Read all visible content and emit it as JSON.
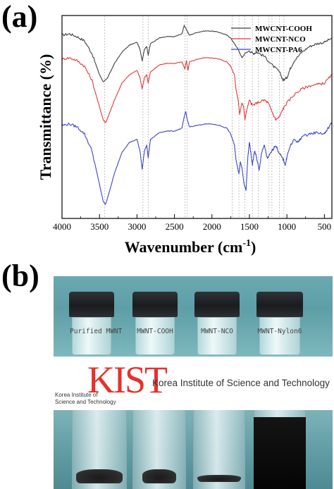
{
  "panel_a_label": "(a)",
  "panel_b_label": "(b)",
  "chart_data": {
    "type": "line",
    "xlabel": "Wavenumber (cm",
    "xlabel_sup": "-1",
    "xlabel_close": ")",
    "ylabel": "Transmittance (%)",
    "x_reversed": true,
    "xlim": [
      4000,
      400
    ],
    "x_ticks": [
      4000,
      3500,
      3000,
      2500,
      2000,
      1500,
      1000,
      500
    ],
    "y_ticks_shown": false,
    "grid": false,
    "reference_lines": [
      3430,
      2920,
      2850,
      2360,
      2330,
      1730,
      1640,
      1560,
      1460,
      1380,
      1240,
      1200,
      1100,
      1040
    ],
    "legend_position": "top-right",
    "series": [
      {
        "name": "MWCNT-COOH",
        "color": "#404040",
        "points": [
          [
            4000,
            68
          ],
          [
            3900,
            69
          ],
          [
            3800,
            67
          ],
          [
            3700,
            64
          ],
          [
            3600,
            55
          ],
          [
            3500,
            40
          ],
          [
            3450,
            35
          ],
          [
            3400,
            37
          ],
          [
            3300,
            48
          ],
          [
            3200,
            56
          ],
          [
            3100,
            61
          ],
          [
            3000,
            63
          ],
          [
            2960,
            58
          ],
          [
            2930,
            50
          ],
          [
            2900,
            58
          ],
          [
            2870,
            60
          ],
          [
            2850,
            54
          ],
          [
            2820,
            62
          ],
          [
            2700,
            66
          ],
          [
            2600,
            67
          ],
          [
            2500,
            67
          ],
          [
            2400,
            69
          ],
          [
            2370,
            75
          ],
          [
            2340,
            72
          ],
          [
            2300,
            68
          ],
          [
            2200,
            70
          ],
          [
            2100,
            71
          ],
          [
            2000,
            71
          ],
          [
            1900,
            70
          ],
          [
            1800,
            68
          ],
          [
            1750,
            66
          ],
          [
            1700,
            62
          ],
          [
            1650,
            58
          ],
          [
            1600,
            52
          ],
          [
            1560,
            55
          ],
          [
            1500,
            57
          ],
          [
            1450,
            55
          ],
          [
            1400,
            56
          ],
          [
            1300,
            53
          ],
          [
            1200,
            47
          ],
          [
            1100,
            42
          ],
          [
            1050,
            36
          ],
          [
            1000,
            38
          ],
          [
            950,
            45
          ],
          [
            900,
            50
          ],
          [
            800,
            56
          ],
          [
            700,
            60
          ],
          [
            600,
            62
          ],
          [
            500,
            63
          ],
          [
            400,
            66
          ]
        ]
      },
      {
        "name": "MWCNT-NCO",
        "color": "#e03a3a",
        "points": [
          [
            4000,
            51
          ],
          [
            3900,
            52
          ],
          [
            3800,
            50
          ],
          [
            3700,
            46
          ],
          [
            3600,
            36
          ],
          [
            3500,
            17
          ],
          [
            3450,
            8
          ],
          [
            3420,
            6
          ],
          [
            3400,
            8
          ],
          [
            3300,
            22
          ],
          [
            3200,
            34
          ],
          [
            3100,
            40
          ],
          [
            3000,
            43
          ],
          [
            2960,
            38
          ],
          [
            2930,
            30
          ],
          [
            2900,
            38
          ],
          [
            2870,
            40
          ],
          [
            2850,
            34
          ],
          [
            2820,
            42
          ],
          [
            2700,
            47
          ],
          [
            2600,
            48
          ],
          [
            2500,
            48
          ],
          [
            2400,
            49
          ],
          [
            2360,
            44
          ],
          [
            2340,
            50
          ],
          [
            2320,
            43
          ],
          [
            2300,
            49
          ],
          [
            2200,
            51
          ],
          [
            2100,
            52
          ],
          [
            2000,
            52
          ],
          [
            1900,
            51
          ],
          [
            1800,
            49
          ],
          [
            1750,
            46
          ],
          [
            1700,
            40
          ],
          [
            1680,
            30
          ],
          [
            1650,
            22
          ],
          [
            1630,
            12
          ],
          [
            1600,
            20
          ],
          [
            1580,
            18
          ],
          [
            1560,
            8
          ],
          [
            1540,
            14
          ],
          [
            1500,
            22
          ],
          [
            1460,
            18
          ],
          [
            1400,
            20
          ],
          [
            1300,
            22
          ],
          [
            1250,
            20
          ],
          [
            1200,
            14
          ],
          [
            1150,
            8
          ],
          [
            1100,
            10
          ],
          [
            1050,
            16
          ],
          [
            1000,
            20
          ],
          [
            900,
            26
          ],
          [
            800,
            30
          ],
          [
            700,
            32
          ],
          [
            600,
            33
          ],
          [
            500,
            34
          ],
          [
            400,
            40
          ]
        ]
      },
      {
        "name": "MWCNT-PA6",
        "color": "#3c46c8",
        "points": [
          [
            4000,
            4
          ],
          [
            3900,
            5
          ],
          [
            3800,
            3
          ],
          [
            3700,
            -2
          ],
          [
            3600,
            -14
          ],
          [
            3500,
            -38
          ],
          [
            3450,
            -50
          ],
          [
            3420,
            -52
          ],
          [
            3400,
            -49
          ],
          [
            3300,
            -30
          ],
          [
            3200,
            -15
          ],
          [
            3100,
            -8
          ],
          [
            3000,
            -6
          ],
          [
            2960,
            -14
          ],
          [
            2930,
            -27
          ],
          [
            2900,
            -14
          ],
          [
            2870,
            -10
          ],
          [
            2850,
            -19
          ],
          [
            2820,
            -6
          ],
          [
            2700,
            -1
          ],
          [
            2600,
            0
          ],
          [
            2500,
            0
          ],
          [
            2400,
            2
          ],
          [
            2370,
            10
          ],
          [
            2350,
            14
          ],
          [
            2330,
            8
          ],
          [
            2300,
            3
          ],
          [
            2200,
            4
          ],
          [
            2100,
            5
          ],
          [
            2000,
            5
          ],
          [
            1900,
            4
          ],
          [
            1800,
            2
          ],
          [
            1750,
            -2
          ],
          [
            1700,
            -10
          ],
          [
            1680,
            -20
          ],
          [
            1650,
            -28
          ],
          [
            1640,
            -30
          ],
          [
            1620,
            -22
          ],
          [
            1600,
            -26
          ],
          [
            1570,
            -38
          ],
          [
            1545,
            -42
          ],
          [
            1520,
            -18
          ],
          [
            1500,
            -8
          ],
          [
            1480,
            -16
          ],
          [
            1460,
            -24
          ],
          [
            1430,
            -14
          ],
          [
            1400,
            -20
          ],
          [
            1370,
            -28
          ],
          [
            1340,
            -16
          ],
          [
            1300,
            -10
          ],
          [
            1260,
            -20
          ],
          [
            1200,
            -14
          ],
          [
            1150,
            -10
          ],
          [
            1100,
            -16
          ],
          [
            1050,
            -20
          ],
          [
            1020,
            -24
          ],
          [
            1000,
            -18
          ],
          [
            950,
            -10
          ],
          [
            900,
            -6
          ],
          [
            850,
            -8
          ],
          [
            800,
            -4
          ],
          [
            700,
            -2
          ],
          [
            600,
            -1
          ],
          [
            500,
            -2
          ],
          [
            450,
            2
          ],
          [
            400,
            6
          ]
        ]
      }
    ]
  },
  "vial_labels": [
    "Purified MWNT",
    "MWNT-COOH",
    "MWNT-NCO",
    "MWNT-Nylon6"
  ],
  "kist": {
    "logo": "KIST",
    "name": "Korea Institute of Science and Technology",
    "sub_line1": "Korea Institute of",
    "sub_line2": "Science and Technology",
    "color": "#e8302a"
  },
  "photo_colors": {
    "background": "#5b9aa2",
    "background_light": "#7fb7bd"
  }
}
